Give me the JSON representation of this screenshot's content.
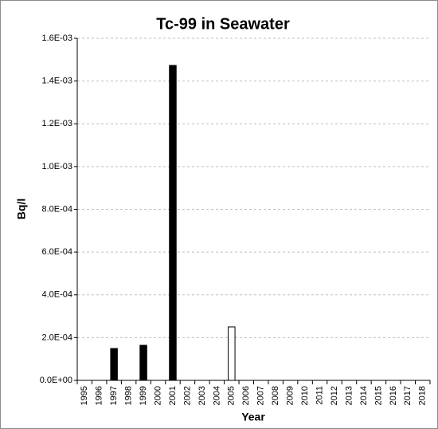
{
  "chart_data": {
    "type": "bar",
    "title": "Tc-99 in Seawater",
    "x_label": "Year",
    "y_label": "Bq/l",
    "categories": [
      "1995",
      "1996",
      "1997",
      "1998",
      "1999",
      "2000",
      "2001",
      "2002",
      "2003",
      "2004",
      "2005",
      "2006",
      "2007",
      "2008",
      "2009",
      "2010",
      "2011",
      "2012",
      "2013",
      "2014",
      "2015",
      "2016",
      "2017",
      "2018"
    ],
    "values": [
      null,
      null,
      0.000149,
      null,
      0.000164,
      null,
      0.001473,
      null,
      null,
      null,
      0.00025,
      null,
      null,
      null,
      null,
      null,
      null,
      null,
      null,
      null,
      null,
      null,
      null,
      null
    ],
    "colors": [
      null,
      null,
      "#000000",
      null,
      "#000000",
      null,
      "#000000",
      null,
      null,
      null,
      "#ffffff",
      null,
      null,
      null,
      null,
      null,
      null,
      null,
      null,
      null,
      null,
      null,
      null,
      null
    ],
    "ylim": [
      0,
      0.0016
    ],
    "yticks": [
      {
        "value": 0,
        "label": "0.0E+00"
      },
      {
        "value": 0.0002,
        "label": "2.0E-04"
      },
      {
        "value": 0.0004,
        "label": "4.0E-04"
      },
      {
        "value": 0.0006,
        "label": "6.0E-04"
      },
      {
        "value": 0.0008,
        "label": "8.0E-04"
      },
      {
        "value": 0.001,
        "label": "1.0E-03"
      },
      {
        "value": 0.0012,
        "label": "1.2E-03"
      },
      {
        "value": 0.0014,
        "label": "1.4E-03"
      },
      {
        "value": 0.0016,
        "label": "1.6E-03"
      }
    ],
    "grid": true
  }
}
